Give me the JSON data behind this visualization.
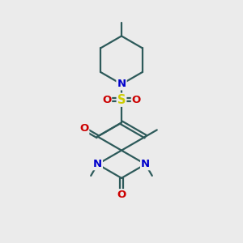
{
  "bg_color": "#ebebeb",
  "bond_color": "#2d5a5a",
  "N_color": "#0000cc",
  "O_color": "#cc0000",
  "S_color": "#cccc00",
  "line_width": 1.6,
  "figsize": [
    3.0,
    3.0
  ],
  "dpi": 100,
  "xlim": [
    0,
    10
  ],
  "ylim": [
    0,
    10
  ]
}
